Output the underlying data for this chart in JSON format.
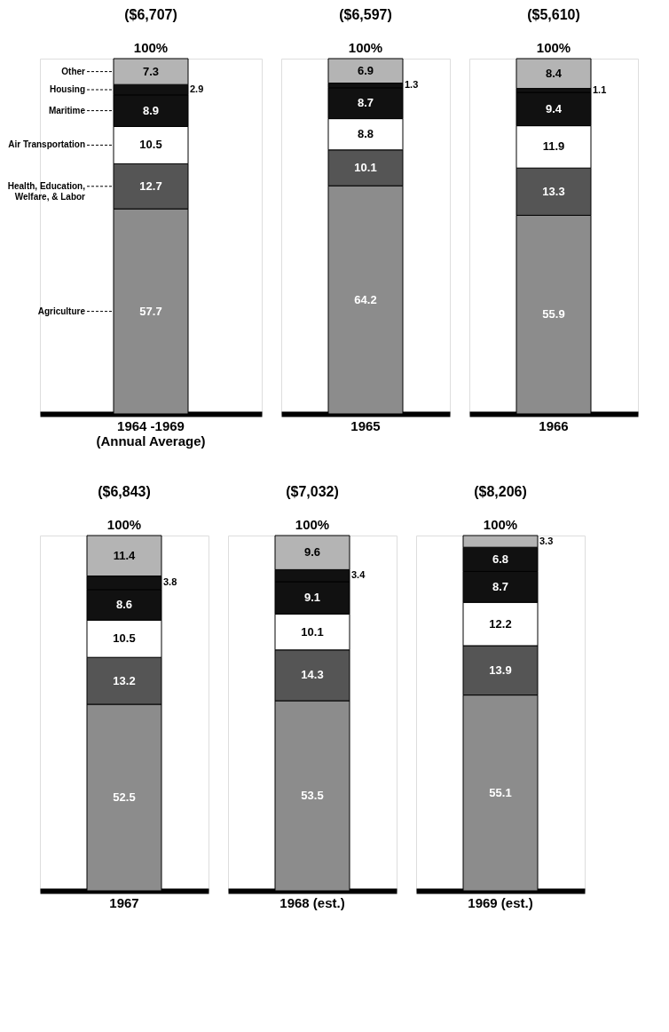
{
  "chart_data": [
    {
      "type": "bar",
      "stacked": true,
      "title": "($6,707)",
      "totals": [
        "100%"
      ],
      "categories": [
        "1964 -1969\n(Annual Average)"
      ],
      "ylim": [
        0,
        100
      ],
      "tick_labels": "x",
      "data_labels": true,
      "legend": "left",
      "series": [
        {
          "name": "Agriculture",
          "color": "#8c8c8c",
          "values": [
            57.7
          ]
        },
        {
          "name": "Health, Education, Welfare, & Labor",
          "color": "#555555",
          "values": [
            12.7
          ]
        },
        {
          "name": "Air Transportation",
          "color": "#ffffff",
          "values": [
            10.5
          ]
        },
        {
          "name": "Maritime",
          "color": "#111111",
          "values": [
            8.9
          ]
        },
        {
          "name": "Housing",
          "color": "#111111",
          "values": [
            2.9
          ]
        },
        {
          "name": "Other",
          "color": "#b4b4b4",
          "values": [
            7.3
          ]
        }
      ]
    },
    {
      "type": "bar",
      "stacked": true,
      "title": "($6,597)",
      "totals": [
        "100%"
      ],
      "categories": [
        "1965"
      ],
      "ylim": [
        0,
        100
      ],
      "tick_labels": "x",
      "data_labels": true,
      "series": [
        {
          "color": "#8c8c8c",
          "values": [
            64.2
          ]
        },
        {
          "color": "#555555",
          "values": [
            10.1
          ]
        },
        {
          "color": "#ffffff",
          "values": [
            8.8
          ]
        },
        {
          "color": "#111111",
          "values": [
            8.7
          ]
        },
        {
          "color": "#111111",
          "values": [
            1.3
          ]
        },
        {
          "color": "#b4b4b4",
          "values": [
            6.9
          ]
        }
      ]
    },
    {
      "type": "bar",
      "stacked": true,
      "title": "($5,610)",
      "totals": [
        "100%"
      ],
      "categories": [
        "1966"
      ],
      "ylim": [
        0,
        100
      ],
      "tick_labels": "x",
      "data_labels": true,
      "series": [
        {
          "color": "#8c8c8c",
          "values": [
            55.9
          ]
        },
        {
          "color": "#555555",
          "values": [
            13.3
          ]
        },
        {
          "color": "#ffffff",
          "values": [
            11.9
          ]
        },
        {
          "color": "#111111",
          "values": [
            9.4
          ]
        },
        {
          "color": "#111111",
          "values": [
            1.1
          ]
        },
        {
          "color": "#b4b4b4",
          "values": [
            8.4
          ]
        }
      ]
    },
    {
      "type": "bar",
      "stacked": true,
      "title": "($6,843)",
      "totals": [
        "100%"
      ],
      "categories": [
        "1967"
      ],
      "ylim": [
        0,
        100
      ],
      "tick_labels": "x",
      "data_labels": true,
      "series": [
        {
          "color": "#8c8c8c",
          "values": [
            52.5
          ]
        },
        {
          "color": "#555555",
          "values": [
            13.2
          ]
        },
        {
          "color": "#ffffff",
          "values": [
            10.5
          ]
        },
        {
          "color": "#111111",
          "values": [
            8.6
          ]
        },
        {
          "color": "#111111",
          "values": [
            3.8
          ]
        },
        {
          "color": "#b4b4b4",
          "values": [
            11.4
          ]
        }
      ]
    },
    {
      "type": "bar",
      "stacked": true,
      "title": "($7,032)",
      "totals": [
        "100%"
      ],
      "categories": [
        "1968 (est.)"
      ],
      "ylim": [
        0,
        100
      ],
      "tick_labels": "x",
      "data_labels": true,
      "series": [
        {
          "color": "#8c8c8c",
          "values": [
            53.5
          ]
        },
        {
          "color": "#555555",
          "values": [
            14.3
          ]
        },
        {
          "color": "#ffffff",
          "values": [
            10.1
          ]
        },
        {
          "color": "#111111",
          "values": [
            9.1
          ]
        },
        {
          "color": "#111111",
          "values": [
            3.4
          ]
        },
        {
          "color": "#b4b4b4",
          "values": [
            9.6
          ]
        }
      ]
    },
    {
      "type": "bar",
      "stacked": true,
      "title": "($8,206)",
      "totals": [
        "100%"
      ],
      "categories": [
        "1969 (est.)"
      ],
      "ylim": [
        0,
        100
      ],
      "tick_labels": "x",
      "data_labels": true,
      "series": [
        {
          "color": "#8c8c8c",
          "values": [
            55.1
          ]
        },
        {
          "color": "#555555",
          "values": [
            13.9
          ]
        },
        {
          "color": "#ffffff",
          "values": [
            12.2
          ]
        },
        {
          "color": "#111111",
          "values": [
            8.7
          ]
        },
        {
          "color": "#111111",
          "values": [
            6.8
          ]
        },
        {
          "color": "#b4b4b4",
          "values": [
            3.3
          ]
        }
      ]
    }
  ]
}
